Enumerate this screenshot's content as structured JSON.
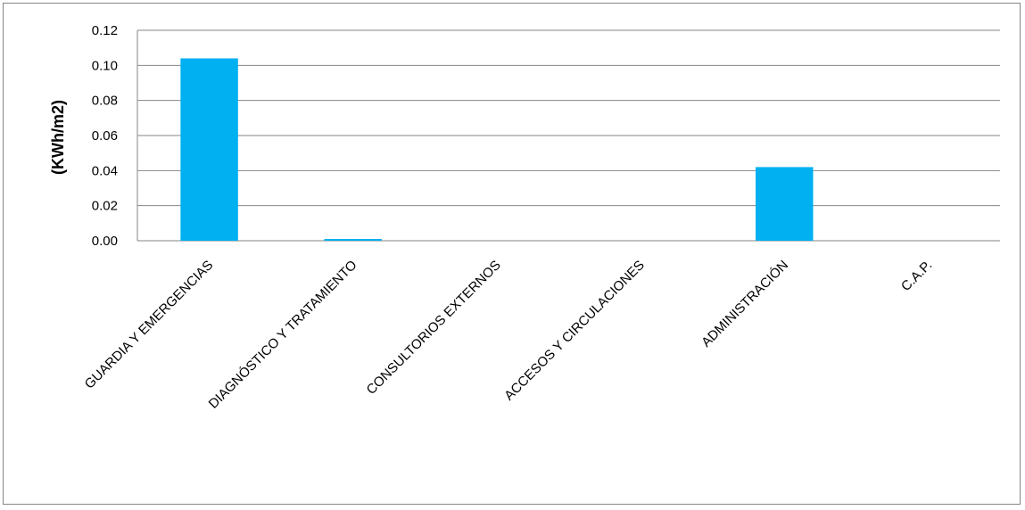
{
  "chart_data": {
    "type": "bar",
    "title": "",
    "xlabel": "",
    "ylabel": "(KWh/m2)",
    "ylim": [
      0,
      0.12
    ],
    "yticks": [
      "0.00",
      "0.02",
      "0.04",
      "0.06",
      "0.08",
      "0.10",
      "0.12"
    ],
    "grid": true,
    "legend": "none",
    "bar_color": "#00B0F0",
    "categories": [
      "GUARDIA Y EMERGENCIAS",
      "DIAGNÓSTICO Y TRATAMIENTO",
      "CONSULTORIOS EXTERNOS",
      "ACCESOS Y CIRCULACIONES",
      "ADMINISTRACIÓN",
      "C.A.P."
    ],
    "values": [
      0.104,
      0.001,
      0,
      0,
      0.042,
      0
    ]
  }
}
